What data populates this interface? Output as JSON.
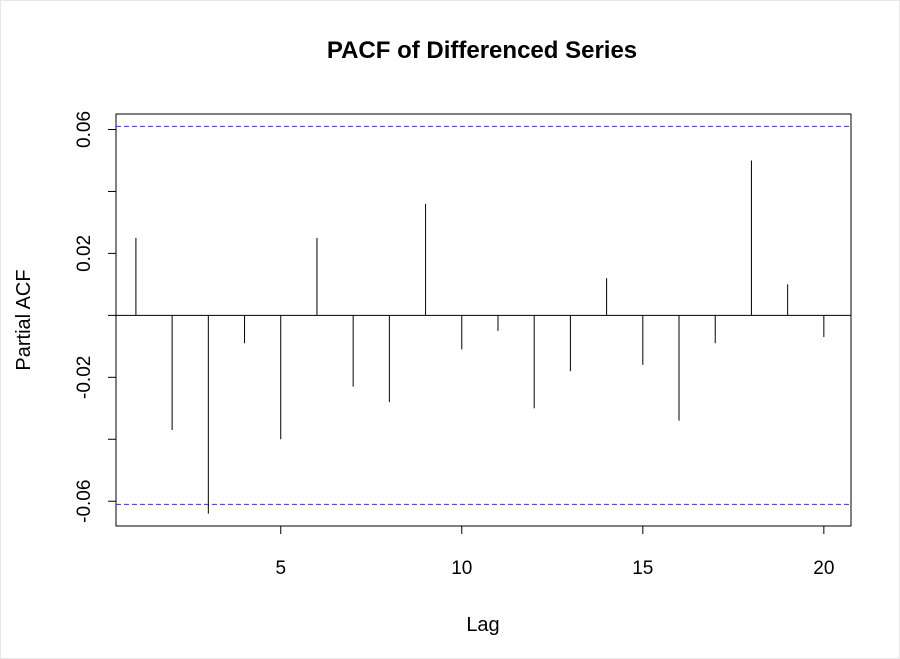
{
  "chart_data": {
    "type": "bar",
    "title": "PACF of Differenced Series",
    "xlabel": "Lag",
    "ylabel": "Partial ACF",
    "x": [
      1,
      2,
      3,
      4,
      5,
      6,
      7,
      8,
      9,
      10,
      11,
      12,
      13,
      14,
      15,
      16,
      17,
      18,
      19,
      20
    ],
    "values": [
      0.025,
      -0.037,
      -0.064,
      -0.009,
      -0.04,
      0.025,
      -0.023,
      -0.028,
      0.036,
      -0.011,
      -0.005,
      -0.03,
      -0.018,
      0.012,
      -0.016,
      -0.034,
      -0.009,
      0.05,
      0.01,
      -0.007
    ],
    "confidence_bound": 0.061,
    "xlim": [
      0.45,
      20.75
    ],
    "ylim": [
      -0.068,
      0.065
    ],
    "xticks": [
      5,
      10,
      15,
      20
    ],
    "xtick_labels": [
      "5",
      "10",
      "15",
      "20"
    ],
    "yticks": [
      -0.06,
      -0.04,
      -0.02,
      0.0,
      0.02,
      0.04,
      0.06
    ],
    "ytick_labels": [
      "-0.06",
      "",
      "-0.02",
      "",
      "0.02",
      "",
      "0.06"
    ],
    "grid": false,
    "colors": {
      "bars": "#000000",
      "confidence_lines": "#3333cc",
      "zero_line": "#000000"
    }
  }
}
